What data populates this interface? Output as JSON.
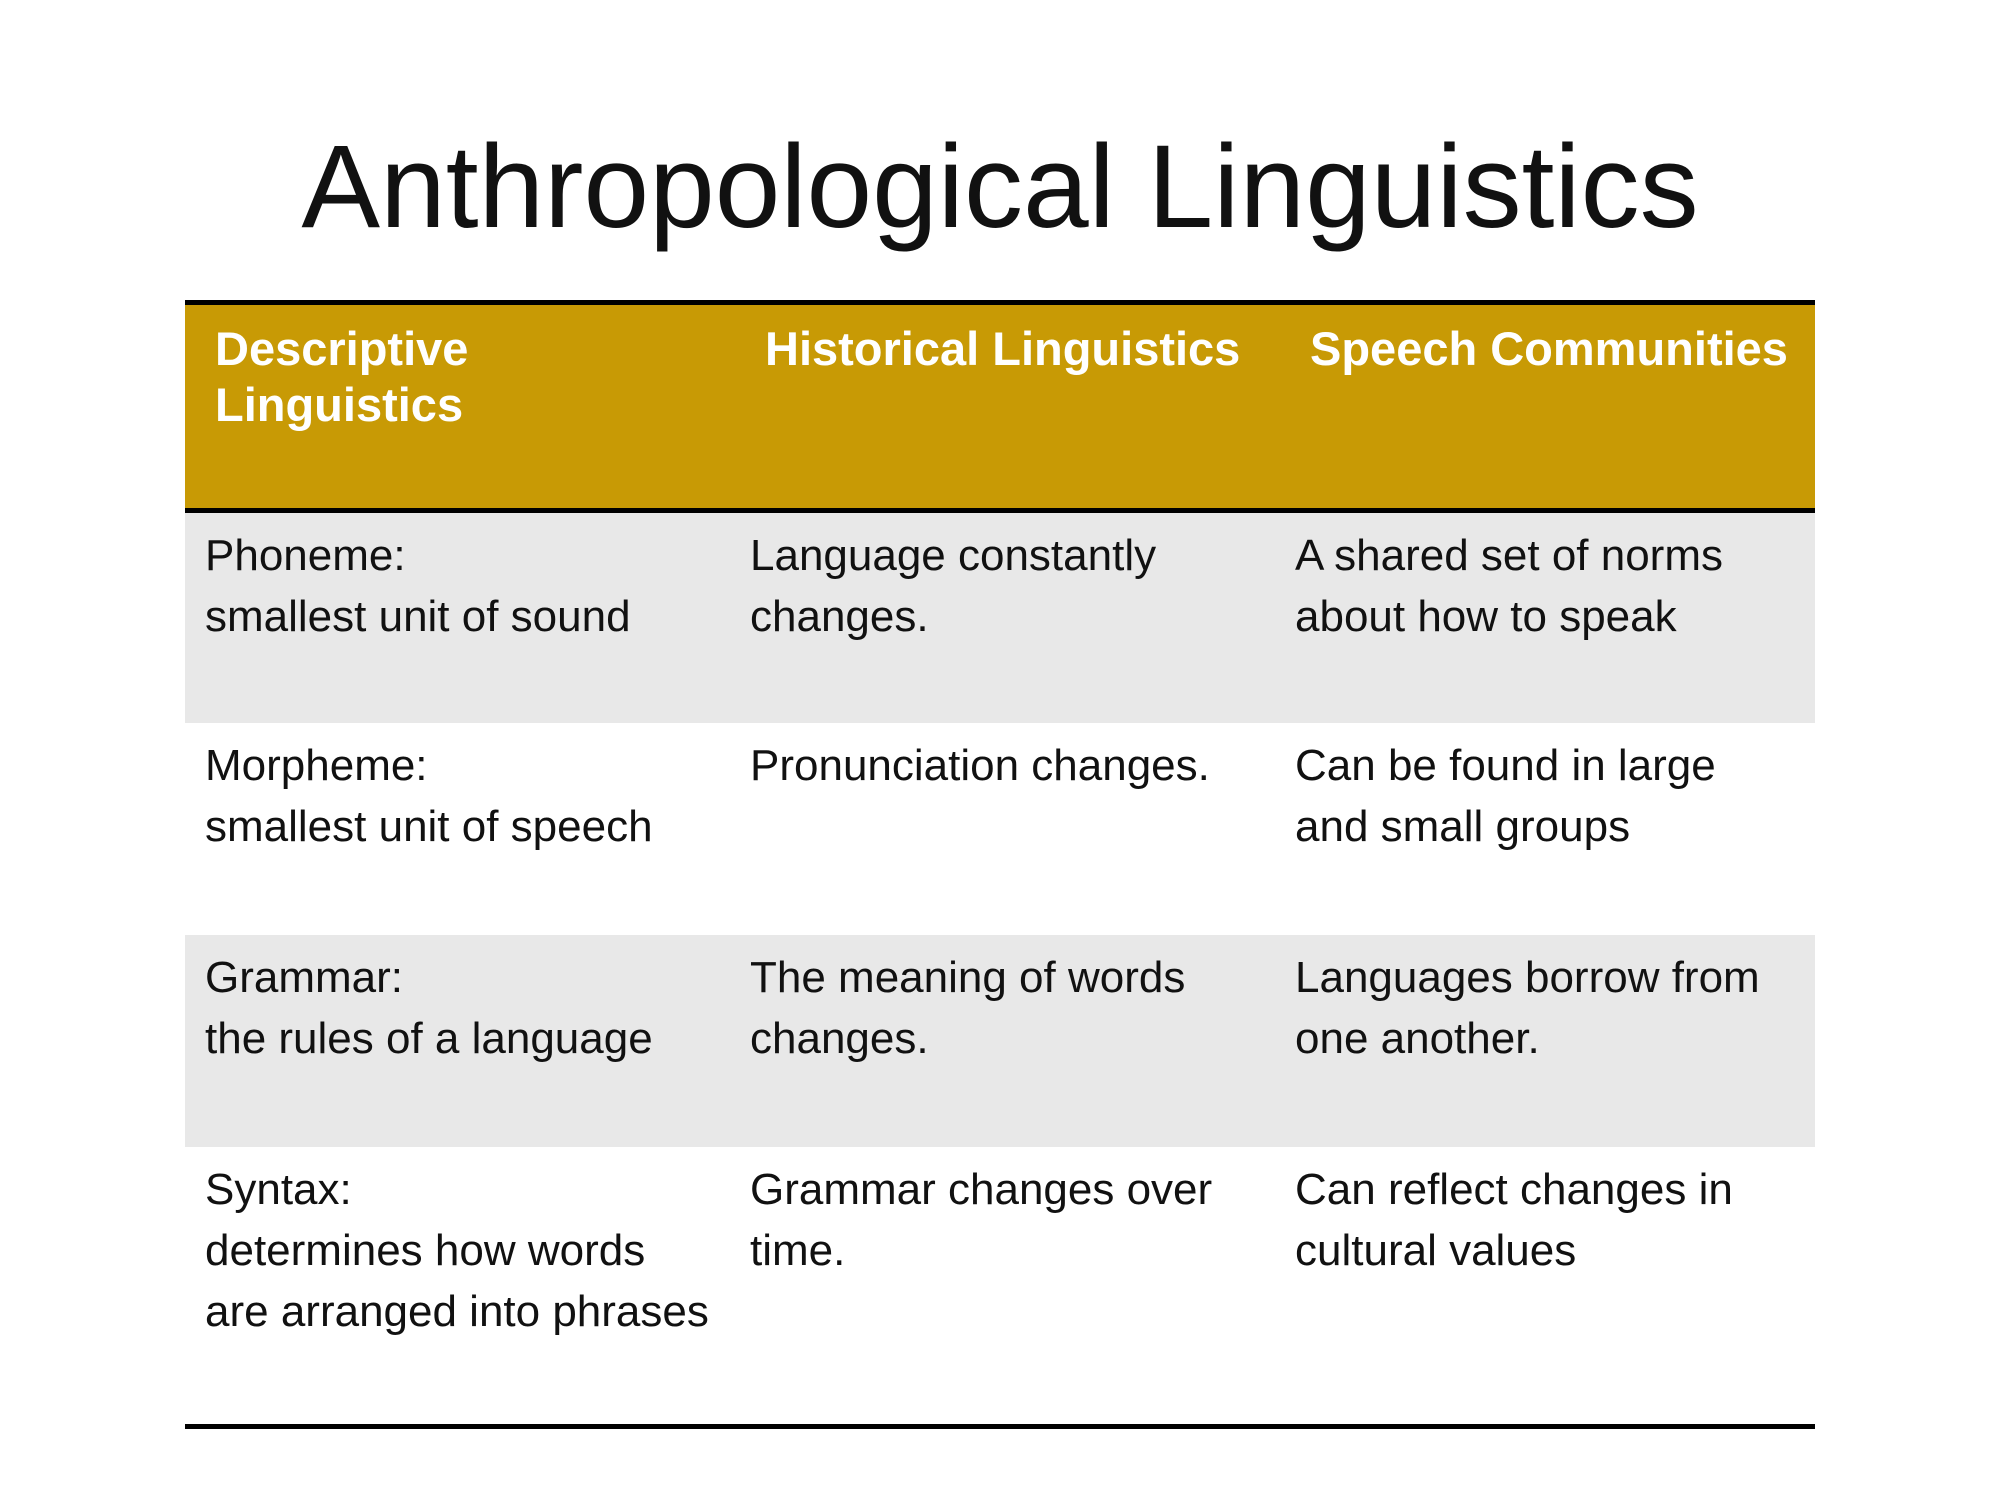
{
  "slide": {
    "title": "Anthropological Linguistics"
  },
  "table": {
    "headers": [
      "Descriptive Linguistics",
      "Historical Linguistics",
      "Speech Communities"
    ],
    "rows": [
      {
        "descriptive": {
          "term": "Phoneme:",
          "definition": "smallest unit of sound"
        },
        "historical": "Language constantly changes.",
        "speech": "A shared set of norms about how to speak"
      },
      {
        "descriptive": {
          "term": "Morpheme:",
          "definition": "smallest unit of speech"
        },
        "historical": "Pronunciation changes.",
        "speech": "Can be found in large and small groups"
      },
      {
        "descriptive": {
          "term": "Grammar:",
          "definition": "the rules of a language"
        },
        "historical": "The meaning of words changes.",
        "speech": "Languages borrow from one another."
      },
      {
        "descriptive": {
          "term": "Syntax:",
          "definition": "determines how words are arranged into phrases"
        },
        "historical": "Grammar changes over time.",
        "speech": "Can reflect changes in cultural values"
      }
    ]
  },
  "colors": {
    "header_fill": "#c89a05",
    "header_text": "#ffffff",
    "band_fill": "#e8e8e8",
    "rule": "#000000"
  }
}
